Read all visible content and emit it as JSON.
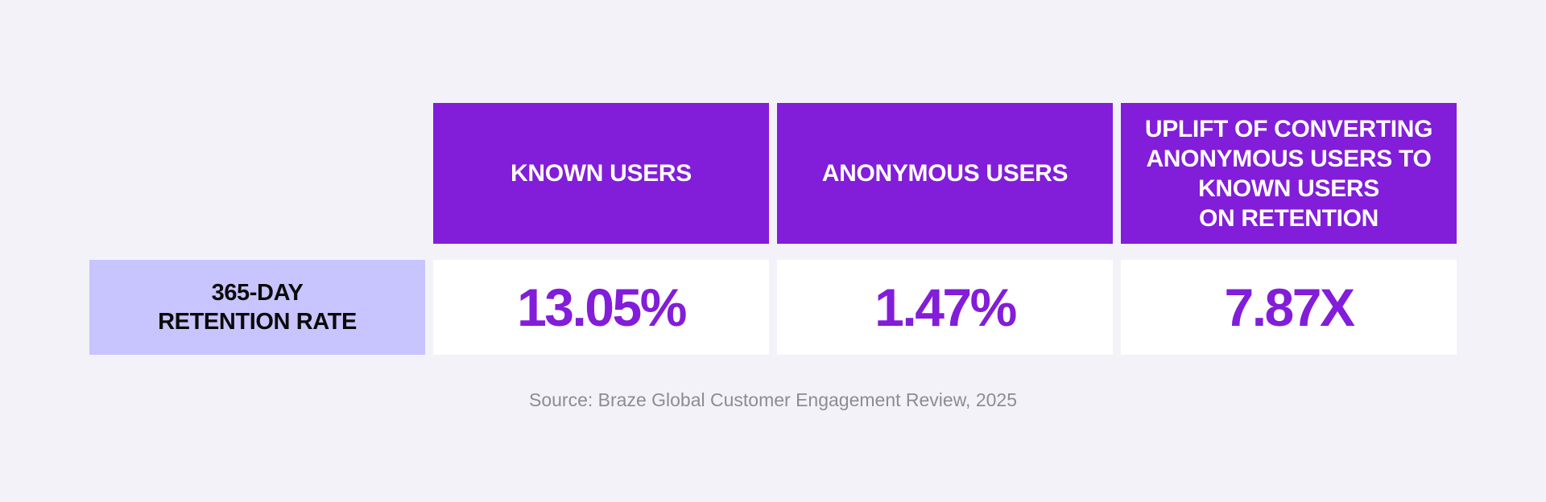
{
  "colors": {
    "background": "#f3f2f8",
    "header_fill": "#821dd9",
    "row_header_fill": "#c8c4fe",
    "value_color": "#821dd9",
    "value_cell_fill": "#ffffff",
    "source_text": "#8d8c93"
  },
  "chart_data": {
    "type": "table",
    "columns": [
      "KNOWN USERS",
      "ANONYMOUS USERS",
      "UPLIFT OF CONVERTING\nANONYMOUS USERS TO\nKNOWN USERS\nON RETENTION"
    ],
    "rows": [
      {
        "label": "365-DAY\nRETENTION RATE",
        "values": [
          "13.05%",
          "1.47%",
          "7.87X"
        ]
      }
    ]
  },
  "source": "Source: Braze Global Customer Engagement Review, 2025"
}
